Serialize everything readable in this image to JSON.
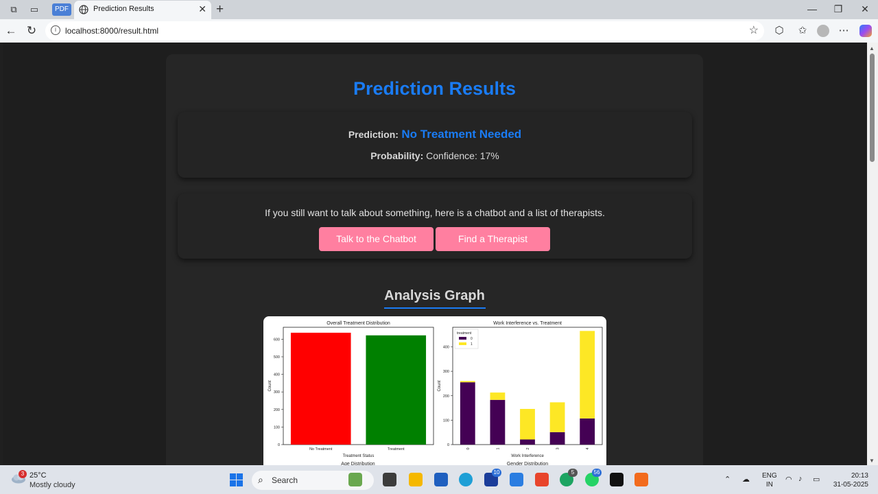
{
  "browser": {
    "tab_title": "Prediction Results",
    "pdf_badge": "PDF",
    "url": "localhost:8000/result.html"
  },
  "page": {
    "title": "Prediction Results",
    "prediction_label": "Prediction:",
    "prediction_value": "No Treatment Needed",
    "probability_label": "Probability:",
    "probability_value": "Confidence: 17%",
    "info_text": "If you still want to talk about something, here is a chatbot and a list of therapists.",
    "chatbot_button": "Talk to the Chatbot",
    "therapist_button": "Find a Therapist",
    "analysis_title": "Analysis Graph"
  },
  "colors": {
    "accent_blue": "#1a7cf5",
    "button_pink": "#ff7fa0",
    "bar_red": "#ff0000",
    "bar_green": "#008000",
    "treat0": "#440154",
    "treat1": "#fde725"
  },
  "chart_data": [
    {
      "type": "bar",
      "title": "Overall Treatment Distribution",
      "xlabel": "Treatment Status",
      "ylabel": "Count",
      "categories": [
        "No Treatment",
        "Treatment"
      ],
      "values": [
        637,
        622
      ],
      "yticks": [
        0,
        100,
        200,
        300,
        400,
        500,
        600
      ],
      "ylim": [
        0,
        668
      ]
    },
    {
      "type": "bar",
      "stacked": true,
      "title": "Work Interference vs. Treatment",
      "xlabel": "Work Interference",
      "ylabel": "Count",
      "categories": [
        "0",
        "1",
        "2",
        "3",
        "4"
      ],
      "legend_title": "treatment",
      "legend_position": "top-left",
      "series": [
        {
          "name": "0",
          "values": [
            255,
            183,
            21,
            51,
            107
          ]
        },
        {
          "name": "1",
          "values": [
            5,
            30,
            125,
            122,
            358
          ]
        }
      ],
      "yticks": [
        0,
        100,
        200,
        300,
        400
      ],
      "ylim": [
        0,
        480
      ]
    }
  ],
  "next_titles": [
    "Age Distribution",
    "Gender Distribution"
  ],
  "taskbar": {
    "temperature": "25°C",
    "weather": "Mostly cloudy",
    "weather_badge": "3",
    "search_placeholder": "Search",
    "badge_l": "10",
    "badge_chrome": "5",
    "badge_whatsapp": "56",
    "lang_1": "ENG",
    "lang_2": "IN",
    "time": "20:13",
    "date": "31-05-2025"
  }
}
